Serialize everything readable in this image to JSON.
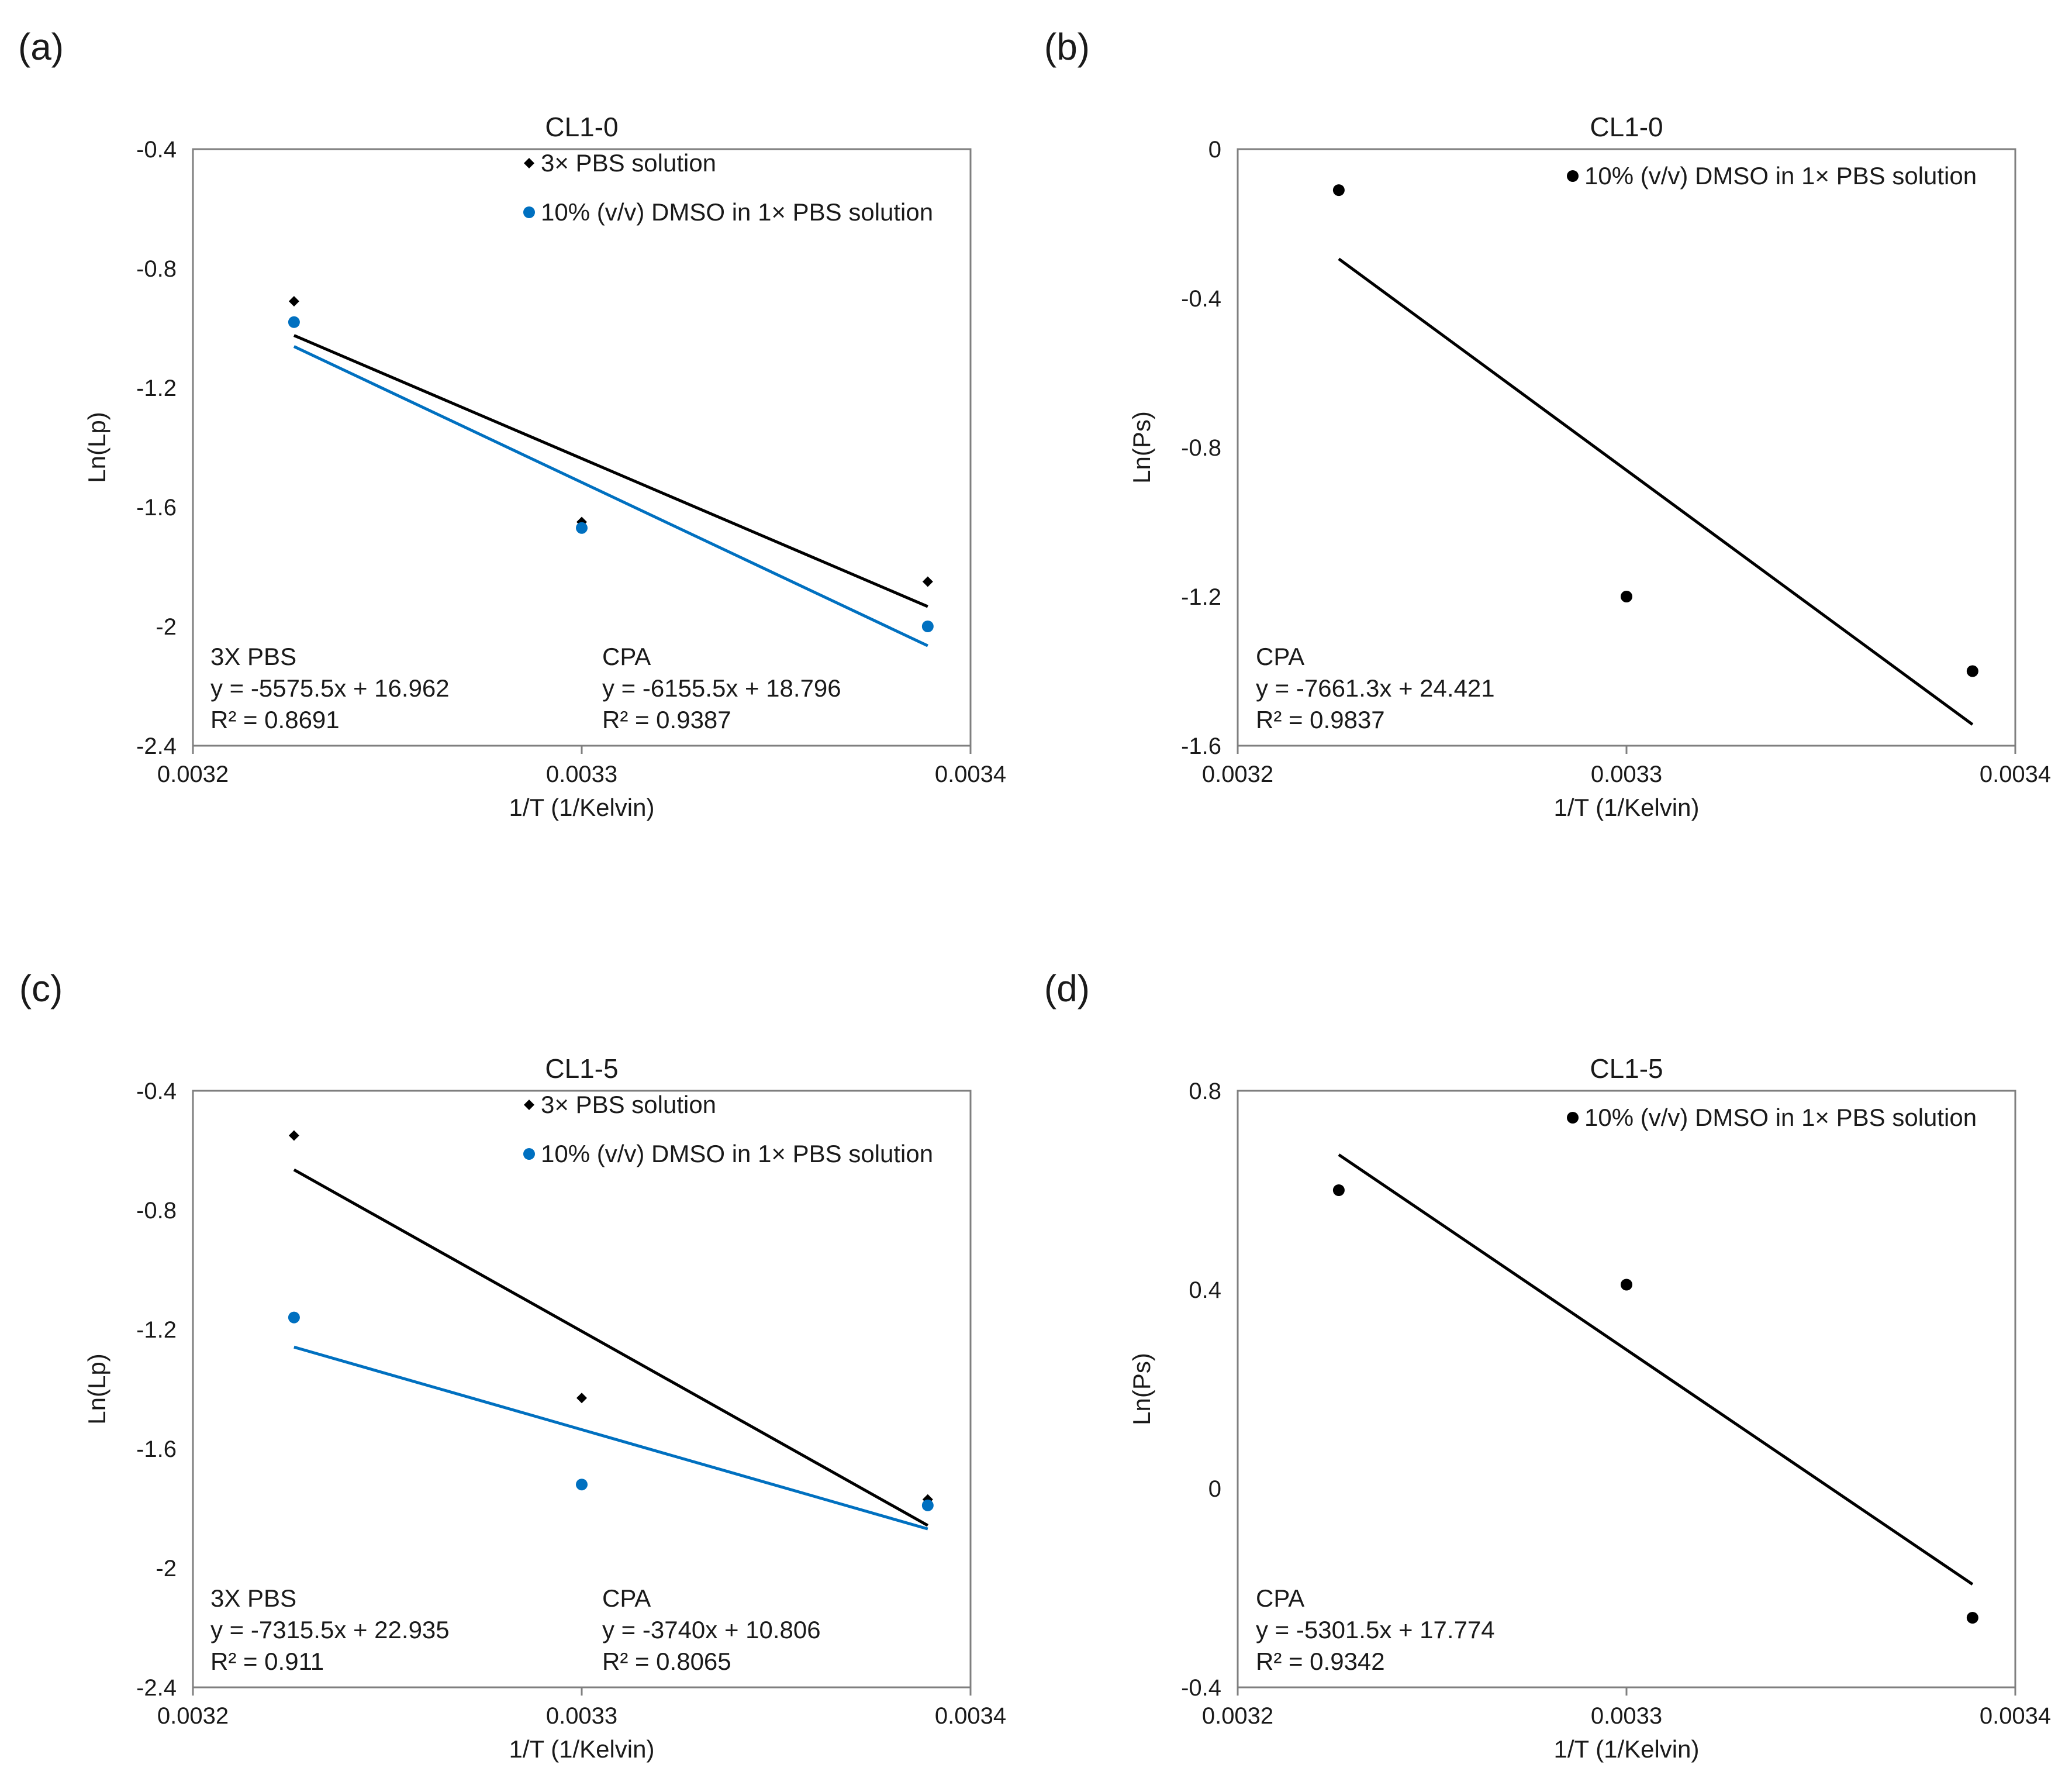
{
  "chart_data": [
    {
      "panel": "(a)",
      "type": "scatter",
      "title": "CL1-0",
      "xlabel": "1/T (1/Kelvin)",
      "ylabel": "Ln(Lp)",
      "xlim": [
        0.0032,
        0.0034
      ],
      "ylim": [
        -2.4,
        -0.4
      ],
      "xticks": [
        "0.0032",
        "0.0033",
        "0.0034"
      ],
      "yticks": [
        "-0.4",
        "-0.8",
        "-1.2",
        "-1.6",
        "-2",
        "-2.4"
      ],
      "x": [
        0.003226,
        0.0033,
        0.003389
      ],
      "series": [
        {
          "name": "3× PBS solution",
          "marker": "diamond",
          "color": "#000000",
          "values": [
            -0.91,
            -1.65,
            -1.85
          ],
          "trendline": {
            "slope": -5575.5,
            "intercept": 16.962
          },
          "label_heading": "3X PBS",
          "equation": "y = -5575.5x + 16.962",
          "r2": "R² = 0.8691"
        },
        {
          "name": "10% (v/v) DMSO in 1× PBS solution",
          "marker": "circle",
          "color": "#0070c0",
          "values": [
            -0.98,
            -1.67,
            -2.0
          ],
          "trendline": {
            "slope": -6155.5,
            "intercept": 18.796
          },
          "label_heading": "CPA",
          "equation": "y = -6155.5x + 18.796",
          "r2": "R² = 0.9387"
        }
      ]
    },
    {
      "panel": "(b)",
      "type": "scatter",
      "title": "CL1-0",
      "xlabel": "1/T (1/Kelvin)",
      "ylabel": "Ln(Ps)",
      "xlim": [
        0.0032,
        0.0034
      ],
      "ylim": [
        -1.6,
        0
      ],
      "xticks": [
        "0.0032",
        "0.0033",
        "0.0034"
      ],
      "yticks": [
        "0",
        "-0.4",
        "-0.8",
        "-1.2",
        "-1.6"
      ],
      "x": [
        0.003226,
        0.0033,
        0.003389
      ],
      "series": [
        {
          "name": "10% (v/v) DMSO in 1× PBS solution",
          "marker": "circle",
          "color": "#000000",
          "values": [
            -0.11,
            -1.2,
            -1.4
          ],
          "trendline": {
            "slope": -7661.3,
            "intercept": 24.421
          },
          "label_heading": "CPA",
          "equation": "y = -7661.3x + 24.421",
          "r2": "R² = 0.9837"
        }
      ]
    },
    {
      "panel": "(c)",
      "type": "scatter",
      "title": "CL1-5",
      "xlabel": "1/T (1/Kelvin)",
      "ylabel": "Ln(Lp)",
      "xlim": [
        0.0032,
        0.0034
      ],
      "ylim": [
        -2.4,
        -0.4
      ],
      "xticks": [
        "0.0032",
        "0.0033",
        "0.0034"
      ],
      "yticks": [
        "-0.4",
        "-0.8",
        "-1.2",
        "-1.6",
        "-2",
        "-2.4"
      ],
      "x": [
        0.003226,
        0.0033,
        0.003389
      ],
      "series": [
        {
          "name": "3× PBS solution",
          "marker": "diamond",
          "color": "#000000",
          "values": [
            -0.55,
            -1.43,
            -1.77
          ],
          "trendline": {
            "slope": -7315.5,
            "intercept": 22.935
          },
          "label_heading": "3X PBS",
          "equation": "y = -7315.5x + 22.935",
          "r2": "R² = 0.911"
        },
        {
          "name": "10% (v/v) DMSO in 1× PBS solution",
          "marker": "circle",
          "color": "#0070c0",
          "values": [
            -1.16,
            -1.72,
            -1.79
          ],
          "trendline": {
            "slope": -3740,
            "intercept": 10.806
          },
          "label_heading": "CPA",
          "equation": "y = -3740x + 10.806",
          "r2": "R² = 0.8065"
        }
      ]
    },
    {
      "panel": "(d)",
      "type": "scatter",
      "title": "CL1-5",
      "xlabel": "1/T (1/Kelvin)",
      "ylabel": "Ln(Ps)",
      "xlim": [
        0.0032,
        0.0034
      ],
      "ylim": [
        -0.4,
        0.8
      ],
      "xticks": [
        "0.0032",
        "0.0033",
        "0.0034"
      ],
      "yticks": [
        "0.8",
        "0.4",
        "0",
        "-0.4"
      ],
      "x": [
        0.003226,
        0.0033,
        0.003389
      ],
      "series": [
        {
          "name": "10% (v/v) DMSO in 1× PBS solution",
          "marker": "circle",
          "color": "#000000",
          "values": [
            0.6,
            0.41,
            -0.26
          ],
          "trendline": {
            "slope": -5301.5,
            "intercept": 17.774
          },
          "label_heading": "CPA",
          "equation": "y = -5301.5x + 17.774",
          "r2": "R² = 0.9342"
        }
      ]
    }
  ]
}
